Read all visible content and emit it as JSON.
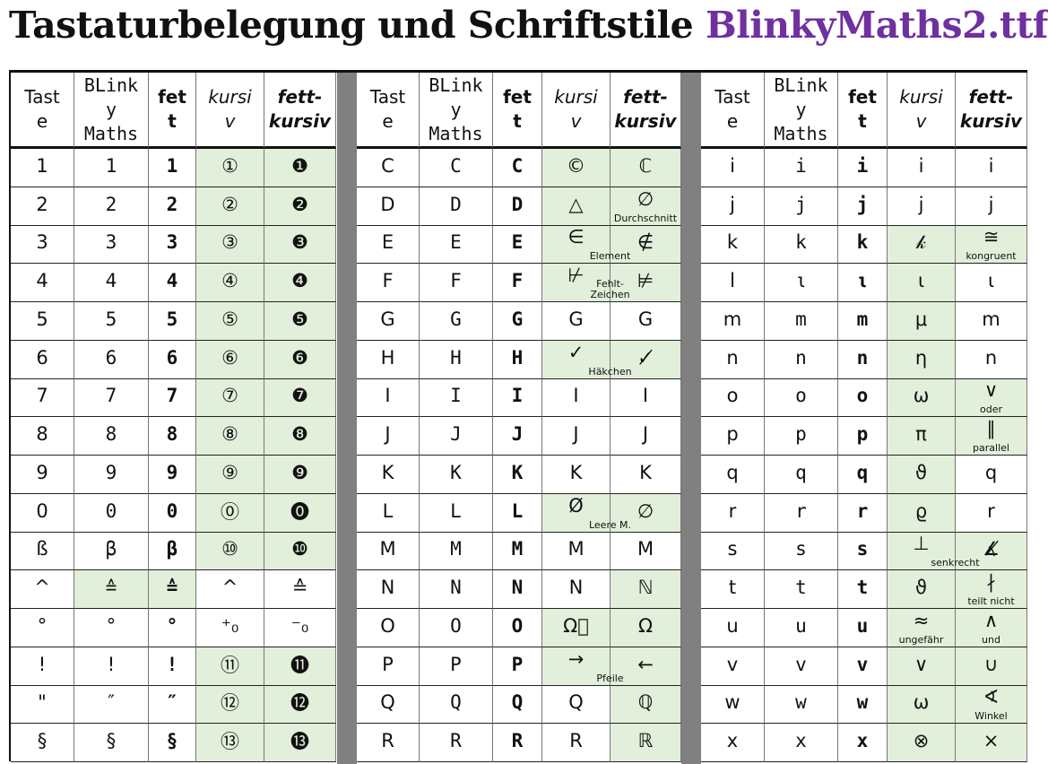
{
  "title": {
    "main": "Tastaturbelegung und Schriftstile",
    "font_name": "BlinkyMaths2.ttf",
    "font_name_color": "#7030a0"
  },
  "colors": {
    "highlight": "#e2efda",
    "separator": "#808080"
  },
  "headers": [
    "Tast\ne",
    "BLink\ny\nMaths",
    "fet\nt",
    "kursi\nv",
    "fett-\nkursiv"
  ],
  "blocks": [
    {
      "rows": [
        [
          {
            "t": "1"
          },
          {
            "t": "1"
          },
          {
            "t": "1"
          },
          {
            "t": "①",
            "g": 1
          },
          {
            "t": "❶",
            "g": 1
          }
        ],
        [
          {
            "t": "2"
          },
          {
            "t": "2"
          },
          {
            "t": "2"
          },
          {
            "t": "②",
            "g": 1
          },
          {
            "t": "❷",
            "g": 1
          }
        ],
        [
          {
            "t": "3"
          },
          {
            "t": "3"
          },
          {
            "t": "3"
          },
          {
            "t": "③",
            "g": 1
          },
          {
            "t": "❸",
            "g": 1
          }
        ],
        [
          {
            "t": "4"
          },
          {
            "t": "4"
          },
          {
            "t": "4"
          },
          {
            "t": "④",
            "g": 1
          },
          {
            "t": "❹",
            "g": 1
          }
        ],
        [
          {
            "t": "5"
          },
          {
            "t": "5"
          },
          {
            "t": "5"
          },
          {
            "t": "⑤",
            "g": 1
          },
          {
            "t": "❺",
            "g": 1
          }
        ],
        [
          {
            "t": "6"
          },
          {
            "t": "6"
          },
          {
            "t": "6"
          },
          {
            "t": "⑥",
            "g": 1
          },
          {
            "t": "❻",
            "g": 1
          }
        ],
        [
          {
            "t": "7"
          },
          {
            "t": "7"
          },
          {
            "t": "7"
          },
          {
            "t": "⑦",
            "g": 1
          },
          {
            "t": "❼",
            "g": 1
          }
        ],
        [
          {
            "t": "8"
          },
          {
            "t": "8"
          },
          {
            "t": "8"
          },
          {
            "t": "⑧",
            "g": 1
          },
          {
            "t": "❽",
            "g": 1
          }
        ],
        [
          {
            "t": "9"
          },
          {
            "t": "9"
          },
          {
            "t": "9"
          },
          {
            "t": "⑨",
            "g": 1
          },
          {
            "t": "❾",
            "g": 1
          }
        ],
        [
          {
            "t": "0"
          },
          {
            "t": "0"
          },
          {
            "t": "0"
          },
          {
            "t": "⓪",
            "g": 1
          },
          {
            "t": "⓿",
            "g": 1
          }
        ],
        [
          {
            "t": "ß"
          },
          {
            "t": "β"
          },
          {
            "t": "β"
          },
          {
            "t": "⑩",
            "g": 1
          },
          {
            "t": "❿",
            "g": 1
          }
        ],
        [
          {
            "t": "^"
          },
          {
            "t": "≙",
            "g": 1
          },
          {
            "t": "≙",
            "g": 1
          },
          {
            "t": "^"
          },
          {
            "t": "≙"
          }
        ],
        [
          {
            "t": "°"
          },
          {
            "t": "°"
          },
          {
            "t": "°"
          },
          {
            "t": "⁺₀"
          },
          {
            "t": "⁻₀"
          }
        ],
        [
          {
            "t": "!"
          },
          {
            "t": "!"
          },
          {
            "t": "!"
          },
          {
            "t": "⑪",
            "g": 1
          },
          {
            "t": "⓫",
            "g": 1
          }
        ],
        [
          {
            "t": "\""
          },
          {
            "t": "″"
          },
          {
            "t": "″"
          },
          {
            "t": "⑫",
            "g": 1
          },
          {
            "t": "⓬",
            "g": 1
          }
        ],
        [
          {
            "t": "§"
          },
          {
            "t": "§"
          },
          {
            "t": "§"
          },
          {
            "t": "⑬",
            "g": 1
          },
          {
            "t": "⓭",
            "g": 1
          }
        ]
      ]
    },
    {
      "rows": [
        [
          {
            "t": "C"
          },
          {
            "t": "C"
          },
          {
            "t": "C"
          },
          {
            "t": "©",
            "g": 1
          },
          {
            "t": "ℂ",
            "g": 1
          }
        ],
        [
          {
            "t": "D"
          },
          {
            "t": "D"
          },
          {
            "t": "D"
          },
          {
            "t": "△",
            "g": 1
          },
          {
            "t": "∅",
            "g": 1,
            "l": "Durchschnitt"
          }
        ],
        [
          {
            "t": "E"
          },
          {
            "t": "E"
          },
          {
            "t": "E"
          },
          {
            "t": "∈",
            "g": 1,
            "l": "Element",
            "s": 1
          },
          {
            "t": "∉",
            "g": 1
          }
        ],
        [
          {
            "t": "F"
          },
          {
            "t": "F"
          },
          {
            "t": "F"
          },
          {
            "t": "⊬",
            "g": 1,
            "l": "Fehlt-\nZeichen",
            "s": 1
          },
          {
            "t": "⊭",
            "g": 1
          }
        ],
        [
          {
            "t": "G"
          },
          {
            "t": "G"
          },
          {
            "t": "G"
          },
          {
            "t": "G"
          },
          {
            "t": "G"
          }
        ],
        [
          {
            "t": "H"
          },
          {
            "t": "H"
          },
          {
            "t": "H"
          },
          {
            "t": "✓",
            "g": 1,
            "l": "Häkchen",
            "s": 1
          },
          {
            "t": "✓̸",
            "g": 1
          }
        ],
        [
          {
            "t": "I"
          },
          {
            "t": "I"
          },
          {
            "t": "I"
          },
          {
            "t": "I"
          },
          {
            "t": "I"
          }
        ],
        [
          {
            "t": "J"
          },
          {
            "t": "J"
          },
          {
            "t": "J"
          },
          {
            "t": "J"
          },
          {
            "t": "J"
          }
        ],
        [
          {
            "t": "K"
          },
          {
            "t": "K"
          },
          {
            "t": "K"
          },
          {
            "t": "K"
          },
          {
            "t": "K"
          }
        ],
        [
          {
            "t": "L"
          },
          {
            "t": "L"
          },
          {
            "t": "L"
          },
          {
            "t": "Ø",
            "g": 1,
            "l": "Leere M.",
            "s": 1
          },
          {
            "t": "∅",
            "g": 1
          }
        ],
        [
          {
            "t": "M"
          },
          {
            "t": "M"
          },
          {
            "t": "M"
          },
          {
            "t": "M"
          },
          {
            "t": "M"
          }
        ],
        [
          {
            "t": "N"
          },
          {
            "t": "N"
          },
          {
            "t": "N"
          },
          {
            "t": "N"
          },
          {
            "t": "ℕ",
            "g": 1
          }
        ],
        [
          {
            "t": "O"
          },
          {
            "t": "O"
          },
          {
            "t": "O"
          },
          {
            "t": "Ω⃝",
            "g": 1
          },
          {
            "t": "Ω",
            "g": 1
          }
        ],
        [
          {
            "t": "P"
          },
          {
            "t": "P"
          },
          {
            "t": "P"
          },
          {
            "t": "→",
            "g": 1,
            "l": "Pfeile",
            "s": 1
          },
          {
            "t": "←",
            "g": 1
          }
        ],
        [
          {
            "t": "Q"
          },
          {
            "t": "Q"
          },
          {
            "t": "Q"
          },
          {
            "t": "Q"
          },
          {
            "t": "ℚ",
            "g": 1
          }
        ],
        [
          {
            "t": "R"
          },
          {
            "t": "R"
          },
          {
            "t": "R"
          },
          {
            "t": "R"
          },
          {
            "t": "ℝ",
            "g": 1
          }
        ]
      ]
    },
    {
      "rows": [
        [
          {
            "t": "i"
          },
          {
            "t": "i"
          },
          {
            "t": "i"
          },
          {
            "t": "i"
          },
          {
            "t": "i"
          }
        ],
        [
          {
            "t": "j"
          },
          {
            "t": "j"
          },
          {
            "t": "j"
          },
          {
            "t": "j"
          },
          {
            "t": "j"
          }
        ],
        [
          {
            "t": "k"
          },
          {
            "t": "k"
          },
          {
            "t": "k"
          },
          {
            "t": "𝓀",
            "g": 1
          },
          {
            "t": "≅",
            "g": 1,
            "l": "kongruent"
          }
        ],
        [
          {
            "t": "l"
          },
          {
            "t": "ι"
          },
          {
            "t": "ι"
          },
          {
            "t": "ι",
            "g": 1
          },
          {
            "t": "ι"
          }
        ],
        [
          {
            "t": "m"
          },
          {
            "t": "m"
          },
          {
            "t": "m"
          },
          {
            "t": "μ",
            "g": 1
          },
          {
            "t": "m"
          }
        ],
        [
          {
            "t": "n"
          },
          {
            "t": "n"
          },
          {
            "t": "n"
          },
          {
            "t": "η",
            "g": 1
          },
          {
            "t": "n"
          }
        ],
        [
          {
            "t": "o"
          },
          {
            "t": "o"
          },
          {
            "t": "o"
          },
          {
            "t": "ω",
            "g": 1
          },
          {
            "t": "∨",
            "g": 1,
            "l": "oder"
          }
        ],
        [
          {
            "t": "p"
          },
          {
            "t": "p"
          },
          {
            "t": "p"
          },
          {
            "t": "π",
            "g": 1
          },
          {
            "t": "∥",
            "g": 1,
            "l": "parallel"
          }
        ],
        [
          {
            "t": "q"
          },
          {
            "t": "q"
          },
          {
            "t": "q"
          },
          {
            "t": "ϑ",
            "g": 1
          },
          {
            "t": "q"
          }
        ],
        [
          {
            "t": "r"
          },
          {
            "t": "r"
          },
          {
            "t": "r"
          },
          {
            "t": "ϱ",
            "g": 1
          },
          {
            "t": "r"
          }
        ],
        [
          {
            "t": "s"
          },
          {
            "t": "s"
          },
          {
            "t": "s"
          },
          {
            "t": "⊥",
            "g": 1,
            "l": "senkrecht",
            "s": 1
          },
          {
            "t": "∡̸",
            "g": 1
          }
        ],
        [
          {
            "t": "t"
          },
          {
            "t": "t"
          },
          {
            "t": "t"
          },
          {
            "t": "ϑ",
            "g": 1
          },
          {
            "t": "∤",
            "g": 1,
            "l": "teilt nicht"
          }
        ],
        [
          {
            "t": "u"
          },
          {
            "t": "u"
          },
          {
            "t": "u"
          },
          {
            "t": "≈",
            "g": 1,
            "l": "ungefähr"
          },
          {
            "t": "∧",
            "g": 1,
            "l": "und"
          }
        ],
        [
          {
            "t": "v"
          },
          {
            "t": "v"
          },
          {
            "t": "v"
          },
          {
            "t": "∨",
            "g": 1
          },
          {
            "t": "∪",
            "g": 1
          }
        ],
        [
          {
            "t": "w"
          },
          {
            "t": "w"
          },
          {
            "t": "w"
          },
          {
            "t": "ω",
            "g": 1
          },
          {
            "t": "∢",
            "g": 1,
            "l": "Winkel"
          }
        ],
        [
          {
            "t": "x"
          },
          {
            "t": "x"
          },
          {
            "t": "x"
          },
          {
            "t": "⊗",
            "g": 1
          },
          {
            "t": "×",
            "g": 1
          }
        ]
      ]
    }
  ]
}
